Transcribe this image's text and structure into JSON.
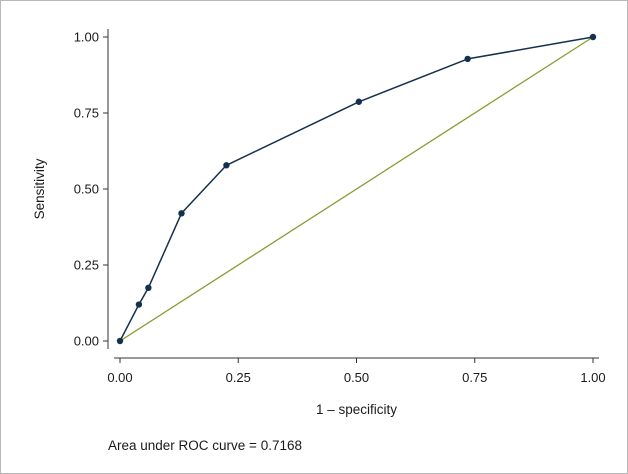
{
  "chart_data": {
    "type": "line",
    "title": "",
    "xlabel": "1 – specificity",
    "ylabel": "Sensitivity",
    "xlim": [
      0,
      1
    ],
    "ylim": [
      0,
      1
    ],
    "x_ticks": [
      "0.00",
      "0.25",
      "0.50",
      "0.75",
      "1.00"
    ],
    "y_ticks": [
      "0.00",
      "0.25",
      "0.50",
      "0.75",
      "1.00"
    ],
    "grid": false,
    "series": [
      {
        "kind": "roc-curve",
        "color": "#14304f",
        "points": [
          {
            "x": 0.0,
            "y": 0.0
          },
          {
            "x": 0.04,
            "y": 0.12
          },
          {
            "x": 0.06,
            "y": 0.175
          },
          {
            "x": 0.13,
            "y": 0.42
          },
          {
            "x": 0.225,
            "y": 0.578
          },
          {
            "x": 0.505,
            "y": 0.787
          },
          {
            "x": 0.735,
            "y": 0.928
          },
          {
            "x": 1.0,
            "y": 1.0
          }
        ]
      },
      {
        "kind": "reference-line",
        "color": "#8a9a2e",
        "points": [
          {
            "x": 0.0,
            "y": 0.0
          },
          {
            "x": 1.0,
            "y": 1.0
          }
        ]
      }
    ],
    "annotation": "Area under ROC curve = 0.7168"
  }
}
